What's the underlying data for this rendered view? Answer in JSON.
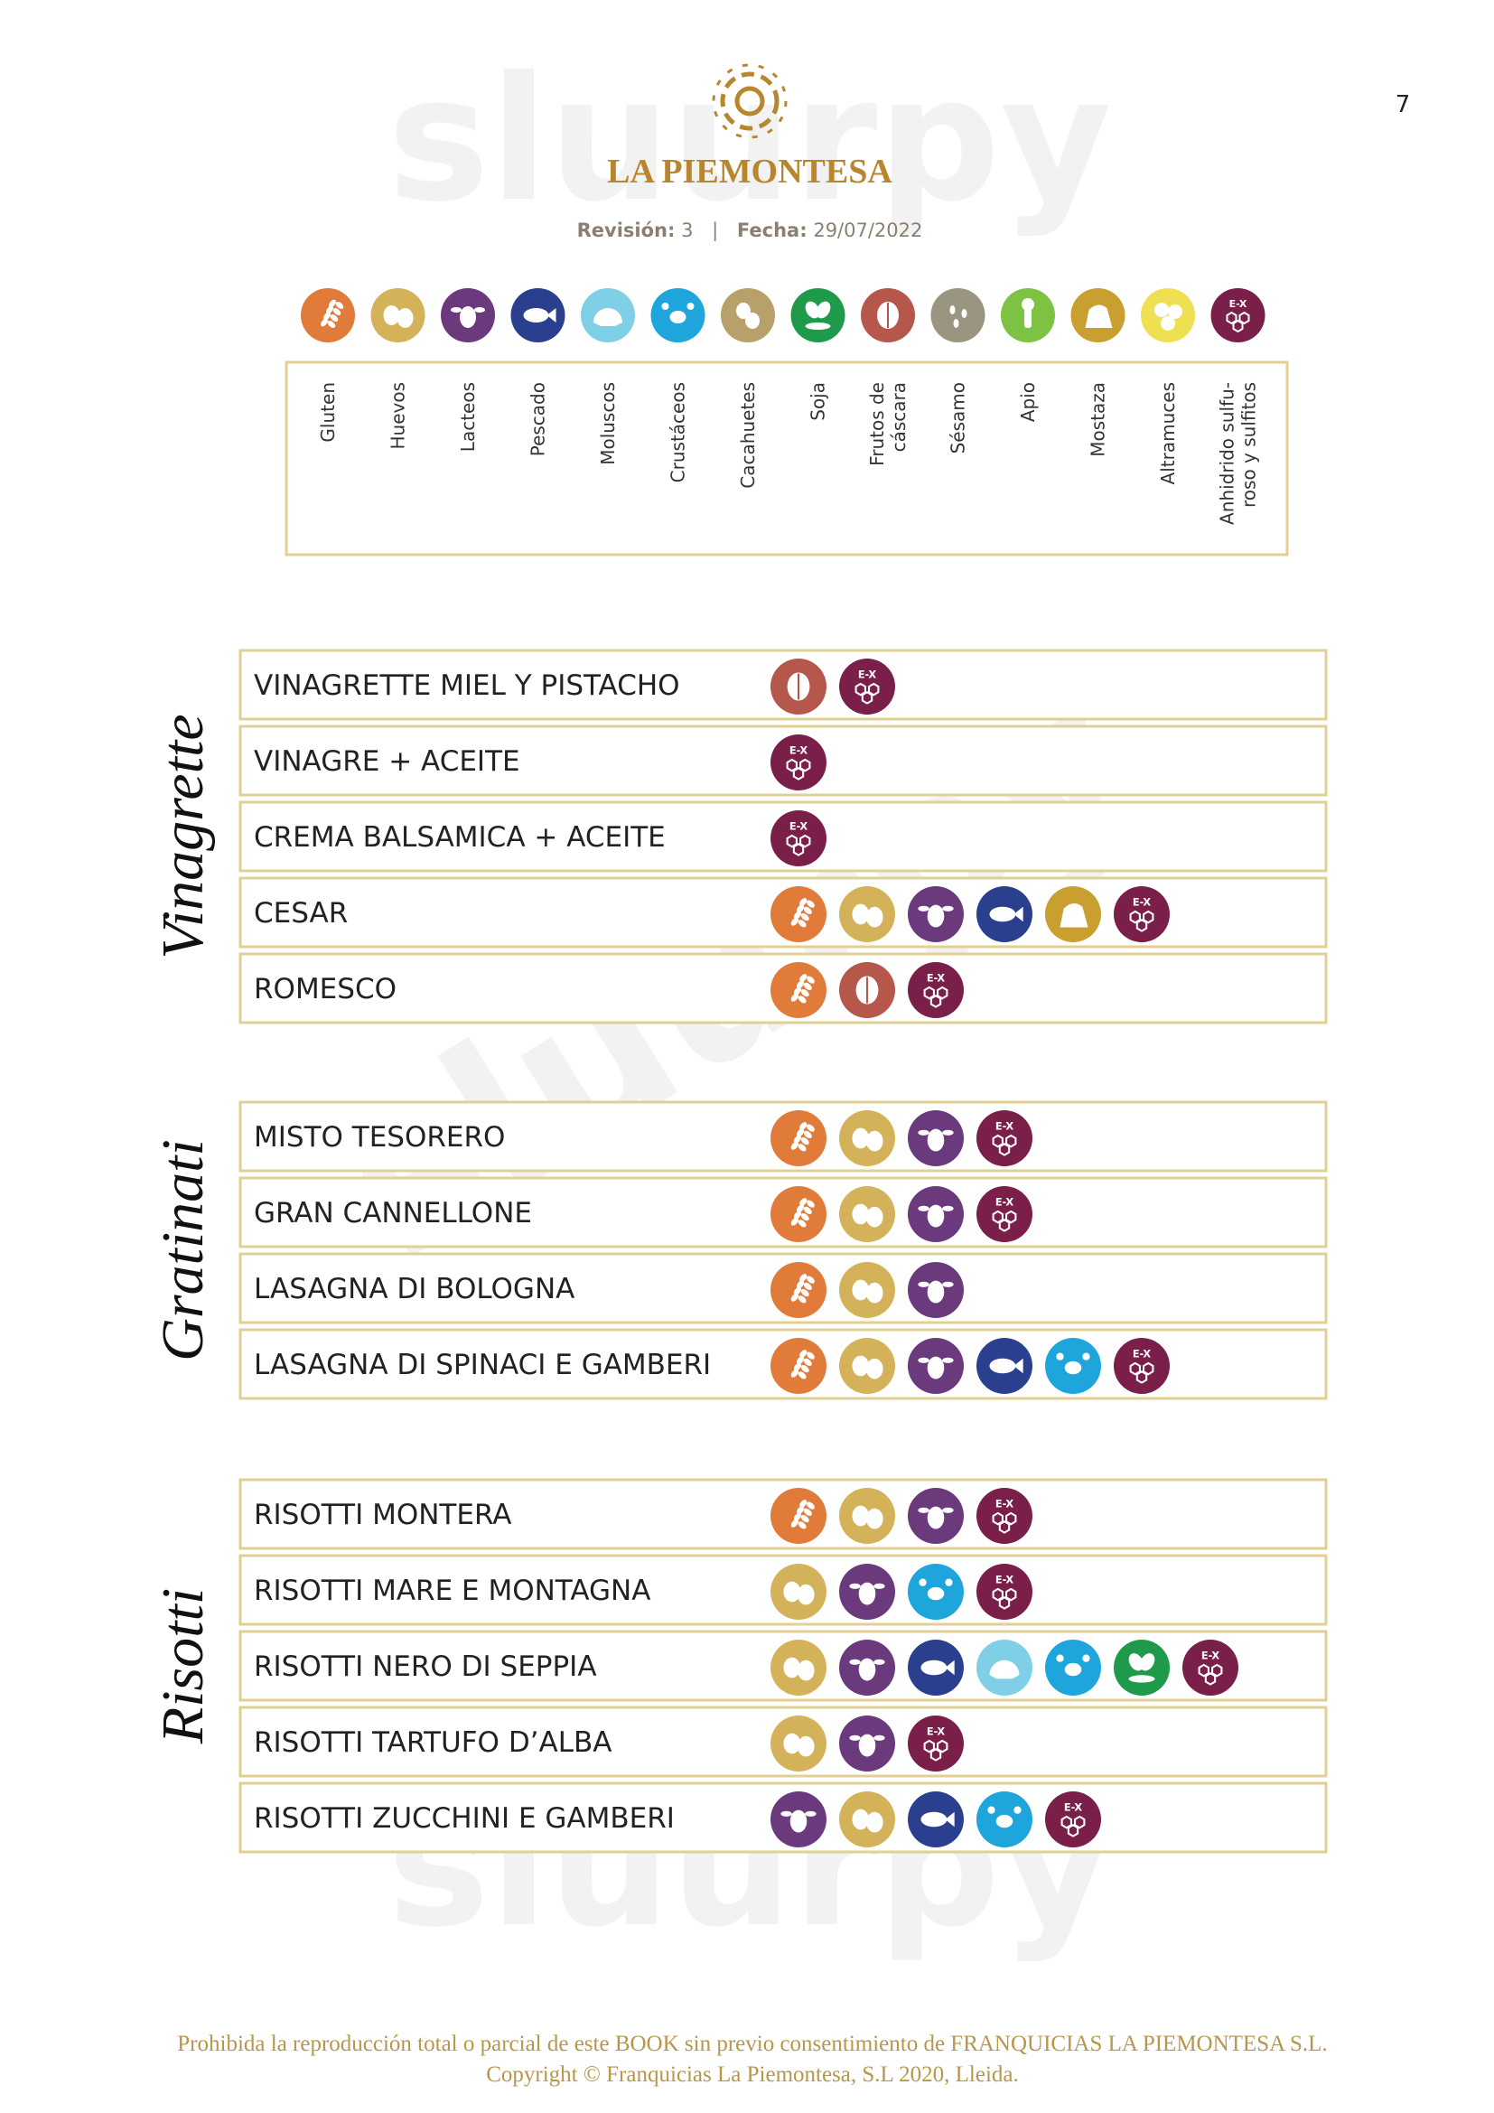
{
  "page_number": "7",
  "watermark": "sluurpy",
  "header": {
    "brand": "LA PIEMONTESA",
    "revision_label": "Revisión:",
    "revision": "3",
    "separator": "|",
    "date_label": "Fecha:",
    "date": "29/07/2022"
  },
  "sulfite_icon_text": "E-X",
  "legend": [
    [
      "Gluten"
    ],
    [
      "Huevos"
    ],
    [
      "Lacteos"
    ],
    [
      "Pescado"
    ],
    [
      "Moluscos"
    ],
    [
      "Crustáceos"
    ],
    [
      "Cacahuetes"
    ],
    [
      "Soja"
    ],
    [
      "Frutos de",
      "cáscara"
    ],
    [
      "Sésamo"
    ],
    [
      "Apio"
    ],
    [
      "Mostaza"
    ],
    [
      "Altramuces"
    ],
    [
      "Anhidrido sulfu-",
      "roso y sulfitos"
    ]
  ],
  "sections": [
    {
      "title": "Vinagrette",
      "items": [
        {
          "name": "VINAGRETTE MIEL Y PISTACHO",
          "allergens": [
            8,
            13
          ]
        },
        {
          "name": "VINAGRE + ACEITE",
          "allergens": [
            13
          ]
        },
        {
          "name": "CREMA BALSAMICA + ACEITE",
          "allergens": [
            13
          ]
        },
        {
          "name": "CESAR",
          "allergens": [
            0,
            1,
            2,
            3,
            11,
            13
          ]
        },
        {
          "name": "ROMESCO",
          "allergens": [
            0,
            8,
            13
          ]
        }
      ]
    },
    {
      "title": "Gratinati",
      "items": [
        {
          "name": "MISTO TESORERO",
          "allergens": [
            0,
            1,
            2,
            13
          ]
        },
        {
          "name": "GRAN CANNELLONE",
          "allergens": [
            0,
            1,
            2,
            13
          ]
        },
        {
          "name": "LASAGNA DI BOLOGNA",
          "allergens": [
            0,
            1,
            2
          ]
        },
        {
          "name": "LASAGNA DI SPINACI E GAMBERI",
          "allergens": [
            0,
            1,
            2,
            3,
            5,
            13
          ]
        }
      ]
    },
    {
      "title": "Risotti",
      "items": [
        {
          "name": "RISOTTI MONTERA",
          "allergens": [
            0,
            1,
            2,
            13
          ]
        },
        {
          "name": "RISOTTI MARE E MONTAGNA",
          "allergens": [
            1,
            2,
            5,
            13
          ]
        },
        {
          "name": "RISOTTI NERO DI SEPPIA",
          "allergens": [
            1,
            2,
            3,
            4,
            5,
            7,
            13
          ]
        },
        {
          "name": "RISOTTI TARTUFO D’ALBA",
          "allergens": [
            1,
            2,
            13
          ]
        },
        {
          "name": "RISOTTI ZUCCHINI E GAMBERI",
          "allergens": [
            2,
            1,
            3,
            5,
            13
          ]
        }
      ]
    }
  ],
  "footer": [
    "Prohibida la reproducción total o parcial de este BOOK sin previo consentimiento de FRANQUICIAS LA PIEMONTESA S.L.",
    "Copyright © Franquicias La Piemontesa, S.L  2020, Lleida."
  ]
}
